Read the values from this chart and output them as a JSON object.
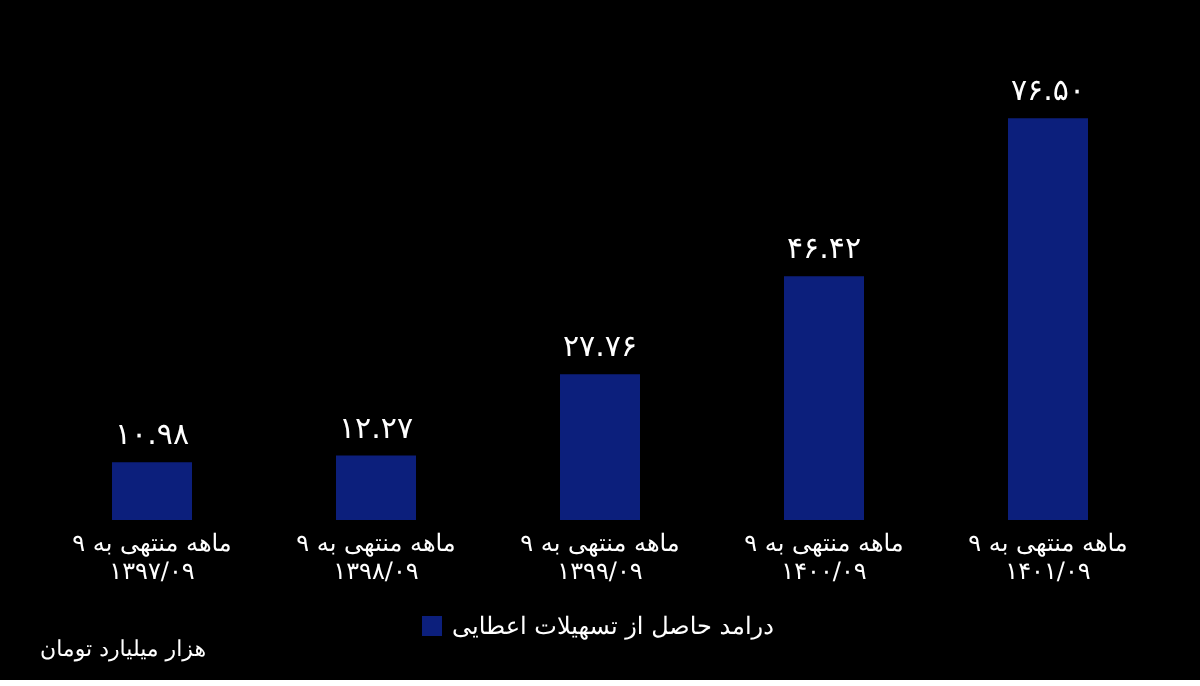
{
  "chart_data": {
    "type": "bar",
    "categories": [
      "۹ ماهه منتهی به\n۱۳۹۷/۰۹",
      "۹ ماهه منتهی به\n۱۳۹۸/۰۹",
      "۹ ماهه منتهی به\n۱۳۹۹/۰۹",
      "۹ ماهه منتهی به\n۱۴۰۰/۰۹",
      "۹ ماهه منتهی به\n۱۴۰۱/۰۹"
    ],
    "series": [
      {
        "name": "درامد حاصل از تسهیلات اعطایی",
        "color": "#0c1f7c",
        "values": [
          10.98,
          12.27,
          27.76,
          46.42,
          76.5
        ],
        "value_labels": [
          "۱۰.۹۸",
          "۱۲.۲۷",
          "۲۷.۷۶",
          "۴۶.۴۲",
          "۷۶.۵۰"
        ]
      }
    ],
    "legend": "bottom",
    "grid": false,
    "annotations": [
      "هزار میلیارد تومان"
    ]
  }
}
